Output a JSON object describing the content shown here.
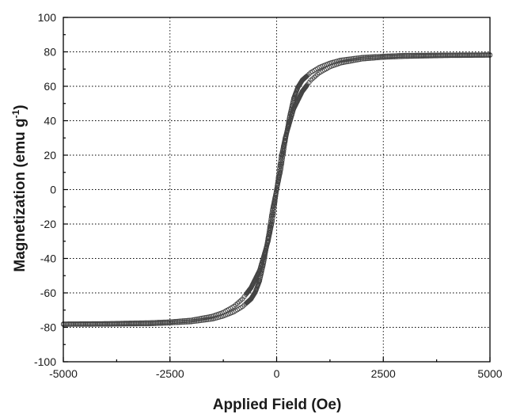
{
  "chart_data": {
    "type": "scatter",
    "title": "",
    "xlabel": "Applied Field (Oe)",
    "ylabel_main": "Magnetization (emu g",
    "ylabel_sup": "-1",
    "ylabel_close": ")",
    "xlim": [
      -5000,
      5000
    ],
    "ylim": [
      -100,
      100
    ],
    "grid": true,
    "x_major_ticks": [
      -5000,
      -2500,
      0,
      2500,
      5000
    ],
    "x_tick_labels": [
      "-5000",
      "-2500",
      "0",
      "2500",
      "5000"
    ],
    "x_minor_ticks": [
      -3750,
      -1250,
      1250,
      3750
    ],
    "y_major_ticks": [
      -100,
      -80,
      -60,
      -40,
      -20,
      0,
      20,
      40,
      60,
      80,
      100
    ],
    "y_tick_labels": [
      "-100",
      "-80",
      "-60",
      "-40",
      "-20",
      "0",
      "20",
      "40",
      "60",
      "80",
      "100"
    ],
    "y_minor_ticks": [
      -90,
      -70,
      -50,
      -30,
      -10,
      10,
      30,
      50,
      70,
      90
    ],
    "marker": "open-circle",
    "series": [
      {
        "branch": "descending",
        "x": [
          5000,
          4000,
          3000,
          2500,
          2000,
          1500,
          1250,
          1000,
          800,
          600,
          400,
          200,
          100,
          0,
          -100,
          -200,
          -300,
          -400,
          -500,
          -600,
          -800,
          -1000,
          -1250,
          -1500,
          -2000,
          -2500,
          -3000,
          -4000,
          -5000
        ],
        "y": [
          78,
          77.8,
          77.3,
          76.8,
          75.8,
          73.5,
          71.3,
          67.8,
          63.5,
          57,
          47,
          30,
          18,
          0,
          -12,
          -28,
          -42,
          -53,
          -59.5,
          -63.5,
          -68,
          -71,
          -73.5,
          -75.2,
          -76.8,
          -77.5,
          -78,
          -78.2,
          -78.3
        ]
      },
      {
        "branch": "ascending",
        "x": [
          -5000,
          -4000,
          -3000,
          -2500,
          -2000,
          -1500,
          -1250,
          -1000,
          -800,
          -600,
          -400,
          -200,
          -100,
          0,
          100,
          200,
          300,
          400,
          500,
          600,
          800,
          1000,
          1250,
          1500,
          2000,
          2500,
          3000,
          4000,
          5000
        ],
        "y": [
          -78,
          -77.8,
          -77.3,
          -76.8,
          -75.8,
          -73.5,
          -71.3,
          -67.8,
          -63.5,
          -57,
          -47,
          -30,
          -18,
          0,
          12,
          28,
          42,
          53,
          59.5,
          63.5,
          68,
          71,
          73.5,
          75.2,
          76.8,
          77.5,
          78,
          78.2,
          78.3
        ]
      }
    ]
  }
}
